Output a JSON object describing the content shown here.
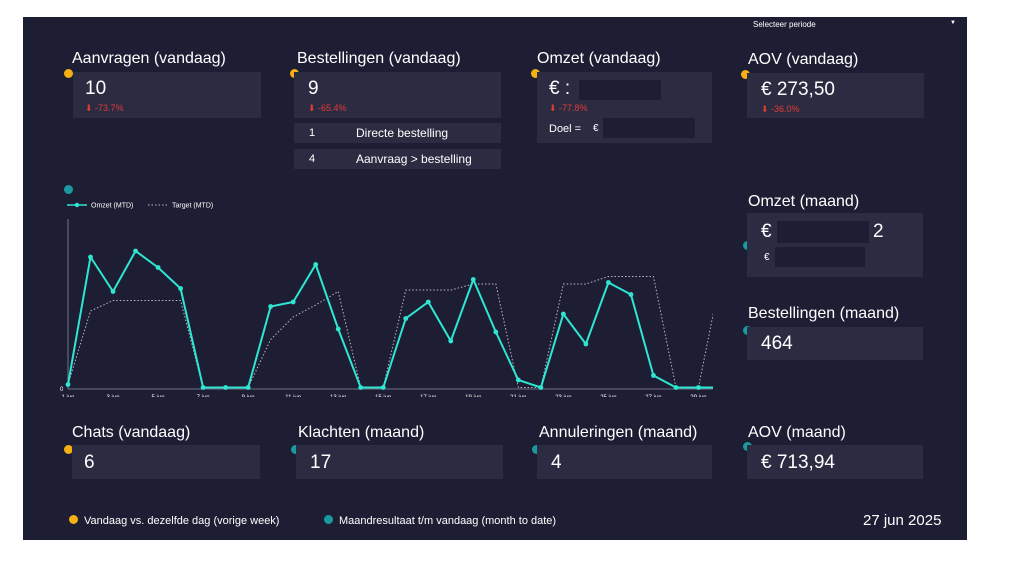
{
  "period_selector": {
    "label": "Selecteer periode",
    "icon": "caret-down-icon"
  },
  "kpis": {
    "aanvragen_vandaag": {
      "title": "Aanvragen (vandaag)",
      "value": "10",
      "delta": "⬇ -73.7%"
    },
    "bestellingen_vandaag": {
      "title": "Bestellingen (vandaag)",
      "value": "9",
      "delta": "⬇ -65.4%",
      "breakdown": [
        {
          "count": "1",
          "label": "Directe bestelling"
        },
        {
          "count": "4",
          "label": "Aanvraag > bestelling"
        }
      ]
    },
    "omzet_vandaag": {
      "title": "Omzet (vandaag)",
      "value": "€ :",
      "delta": "⬇ -77.8%",
      "goal_label": "Doel =",
      "goal_value": "€"
    },
    "aov_vandaag": {
      "title": "AOV (vandaag)",
      "value": "€ 273,50",
      "delta": "⬇ -36.0%"
    },
    "omzet_maand": {
      "title": "Omzet (maand)",
      "value_start": "€",
      "value_end": "2",
      "sub_value": "€"
    },
    "bestellingen_maand": {
      "title": "Bestellingen (maand)",
      "value": "464"
    },
    "chats_vandaag": {
      "title": "Chats (vandaag)",
      "value": "6"
    },
    "klachten_maand": {
      "title": "Klachten (maand)",
      "value": "17"
    },
    "annuleringen_maand": {
      "title": "Annuleringen (maand)",
      "value": "4"
    },
    "aov_maand": {
      "title": "AOV (maand)",
      "value": "€ 713,94"
    }
  },
  "footer": {
    "legend_today": "Vandaag vs. dezelfde dag (vorige week)",
    "legend_month": "Maandresultaat t/m vandaag (month to date)",
    "date": "27 jun 2025"
  },
  "colors": {
    "background": "#1d1e33",
    "card": "#2b2c42",
    "accent_teal": "#2ee6d2",
    "yellow": "#f5b014",
    "teal_dot": "#1a9aa0",
    "negative": "#e53935"
  },
  "chart_data": {
    "type": "line",
    "title": "",
    "xlabel": "",
    "ylabel": "",
    "y_zero_label": "0",
    "ylim": [
      0,
      100
    ],
    "x": [
      1,
      2,
      3,
      4,
      5,
      6,
      7,
      8,
      9,
      10,
      11,
      12,
      13,
      14,
      15,
      16,
      17,
      18,
      19,
      20,
      21,
      22,
      23,
      24,
      25,
      26,
      27,
      28,
      29,
      30
    ],
    "tick_days": [
      1,
      3,
      5,
      7,
      9,
      11,
      13,
      15,
      17,
      19,
      21,
      23,
      25,
      27,
      29
    ],
    "tick_labels": [
      "1 jun",
      "3 jun",
      "5 jun",
      "7 jun",
      "9 jun",
      "11 jun",
      "13 jun",
      "15 jun",
      "17 jun",
      "19 jun",
      "21 jun",
      "23 jun",
      "25 jun",
      "27 jun",
      "29 jun"
    ],
    "series": [
      {
        "name": "Omzet (MTD)",
        "style": "solid",
        "values": [
          3,
          88,
          65,
          92,
          81,
          67,
          1,
          1,
          1,
          55,
          58,
          83,
          40,
          1,
          1,
          47,
          58,
          32,
          73,
          38,
          6,
          1,
          50,
          30,
          71,
          63,
          9,
          1,
          1,
          1
        ]
      },
      {
        "name": "Target (MTD)",
        "style": "dotted",
        "values": [
          3,
          52,
          59,
          59,
          59,
          59,
          1,
          1,
          1,
          33,
          48,
          56,
          65,
          1,
          1,
          66,
          66,
          66,
          70,
          70,
          1,
          1,
          70,
          70,
          75,
          75,
          75,
          1,
          1,
          76
        ]
      }
    ],
    "legend_position": "top-left",
    "grid": false
  }
}
